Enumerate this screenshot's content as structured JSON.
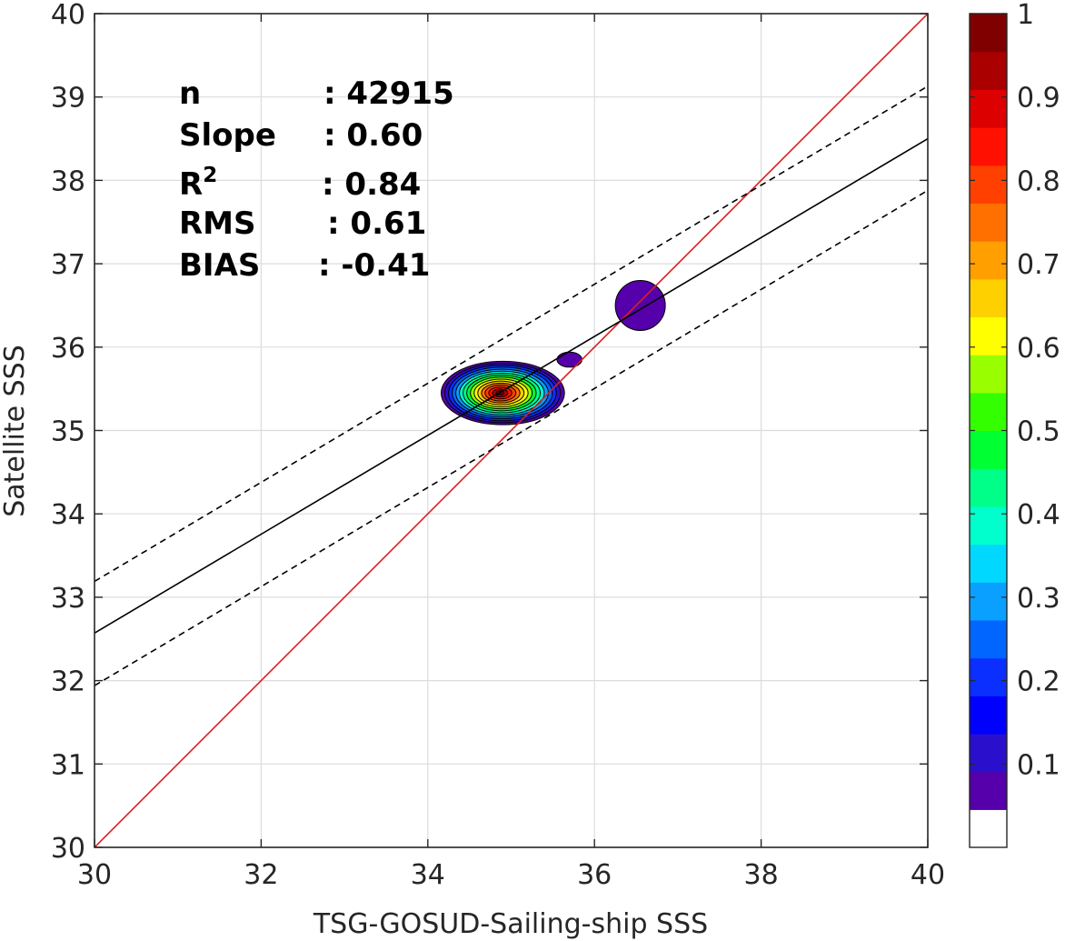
{
  "chart_data": {
    "type": "scatter",
    "subtype": "density-contour",
    "xlabel": "TSG-GOSUD-Sailing-ship SSS",
    "ylabel": "Satellite SSS",
    "xlim": [
      30,
      40
    ],
    "ylim": [
      30,
      40
    ],
    "x_ticks": [
      30,
      32,
      34,
      36,
      38,
      40
    ],
    "y_ticks": [
      30,
      31,
      32,
      33,
      34,
      35,
      36,
      37,
      38,
      39,
      40
    ],
    "x_tick_labels": [
      "30",
      "32",
      "34",
      "36",
      "38",
      "40"
    ],
    "y_tick_labels": [
      "30",
      "31",
      "32",
      "33",
      "34",
      "35",
      "36",
      "37",
      "38",
      "39",
      "40"
    ],
    "grid": true,
    "stats": [
      {
        "label": "n",
        "value": ": 42915"
      },
      {
        "label": "Slope",
        "value": ": 0.60"
      },
      {
        "label": "R",
        "sup": "2",
        "value": ": 0.84"
      },
      {
        "label": "RMS",
        "value": ": 0.61"
      },
      {
        "label": "BIAS",
        "value": ": -0.41"
      }
    ],
    "lines": [
      {
        "kind": "one-to-one",
        "color": "#d62020",
        "style": "solid",
        "points": [
          [
            30,
            30
          ],
          [
            40,
            40
          ]
        ]
      },
      {
        "kind": "regression",
        "color": "#000000",
        "style": "solid",
        "points": [
          [
            30,
            32.57
          ],
          [
            40,
            38.5
          ]
        ]
      },
      {
        "kind": "regression-plus-rms",
        "color": "#000000",
        "style": "dashed",
        "points": [
          [
            30,
            33.19
          ],
          [
            40,
            39.13
          ]
        ]
      },
      {
        "kind": "regression-minus-rms",
        "color": "#000000",
        "style": "dashed",
        "points": [
          [
            30,
            31.94
          ],
          [
            40,
            37.88
          ]
        ]
      }
    ],
    "density_peak": {
      "x": 34.9,
      "y": 35.45,
      "value": 1.0
    },
    "density_blobs": [
      {
        "center": [
          34.9,
          35.45
        ],
        "rx": 0.74,
        "ry": 0.38,
        "levels": 16
      },
      {
        "center": [
          36.55,
          36.5
        ],
        "rx": 0.3,
        "ry": 0.3,
        "levels": 1
      },
      {
        "center": [
          35.7,
          35.85
        ],
        "rx": 0.15,
        "ry": 0.09,
        "levels": 1
      }
    ],
    "colorbar": {
      "range": [
        0,
        1
      ],
      "tick_values": [
        0.1,
        0.2,
        0.3,
        0.4,
        0.5,
        0.6,
        0.7,
        0.8,
        0.9,
        1.0
      ],
      "tick_labels": [
        "0.1",
        "0.2",
        "0.3",
        "0.4",
        "0.5",
        "0.6",
        "0.7",
        "0.8",
        "0.9",
        "1"
      ],
      "colors": [
        "#ffffff",
        "#5500aa",
        "#2a0fcc",
        "#0000ff",
        "#0a2fff",
        "#0066ff",
        "#0aa0ff",
        "#00d8ff",
        "#00ffcc",
        "#00ff88",
        "#00ff33",
        "#33ff00",
        "#99ff00",
        "#ffff00",
        "#ffd000",
        "#ffa000",
        "#ff7000",
        "#ff4000",
        "#ff1000",
        "#dd0000",
        "#aa0000",
        "#800000"
      ]
    }
  }
}
